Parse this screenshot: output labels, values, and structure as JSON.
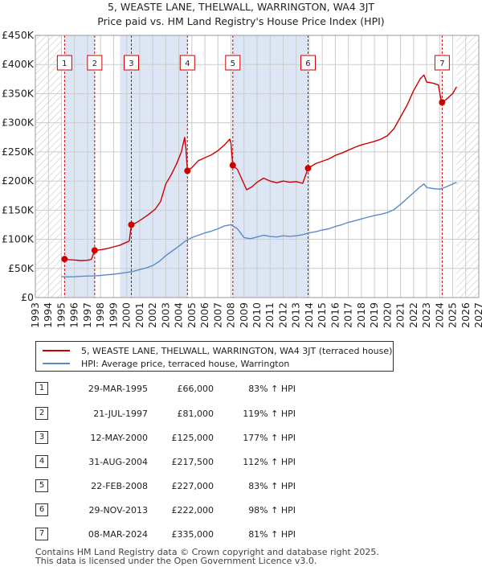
{
  "chart_data": {
    "type": "line",
    "title": "5, WEASTE LANE, THELWALL, WARRINGTON, WA4 3JT",
    "subtitle": "Price paid vs. HM Land Registry's House Price Index (HPI)",
    "xlim": [
      1993,
      2027
    ],
    "ylim": [
      0,
      450000
    ],
    "x_ticks": [
      1993,
      1994,
      1995,
      1996,
      1997,
      1998,
      1999,
      2000,
      2001,
      2002,
      2003,
      2004,
      2005,
      2006,
      2007,
      2008,
      2009,
      2010,
      2011,
      2012,
      2013,
      2014,
      2015,
      2016,
      2017,
      2018,
      2019,
      2020,
      2021,
      2022,
      2023,
      2024,
      2025,
      2026,
      2027
    ],
    "y_ticks": [
      {
        "value": 0,
        "label": "£0"
      },
      {
        "value": 50000,
        "label": "£50K"
      },
      {
        "value": 100000,
        "label": "£100K"
      },
      {
        "value": 150000,
        "label": "£150K"
      },
      {
        "value": 200000,
        "label": "£200K"
      },
      {
        "value": 250000,
        "label": "£250K"
      },
      {
        "value": 300000,
        "label": "£300K"
      },
      {
        "value": 350000,
        "label": "£350K"
      },
      {
        "value": 400000,
        "label": "£400K"
      },
      {
        "value": 450000,
        "label": "£450K"
      }
    ],
    "grid": true,
    "hatched_regions": [
      [
        1993,
        1995.0
      ],
      [
        2025.3,
        2027
      ]
    ],
    "shaded_bands": [
      [
        1995.24,
        1997.55
      ],
      [
        1999.5,
        2004.66
      ],
      [
        2008.14,
        2013.91
      ]
    ],
    "series": [
      {
        "name": "5, WEASTE LANE, THELWALL, WARRINGTON, WA4 3JT (terraced house)",
        "color": "#cc0000",
        "points": [
          [
            1995.24,
            66000
          ],
          [
            1995.6,
            65000
          ],
          [
            1996.0,
            64500
          ],
          [
            1996.5,
            63500
          ],
          [
            1997.0,
            64000
          ],
          [
            1997.3,
            65500
          ],
          [
            1997.55,
            81000
          ],
          [
            1998.0,
            82000
          ],
          [
            1998.5,
            84000
          ],
          [
            1999.0,
            87000
          ],
          [
            1999.5,
            90000
          ],
          [
            2000.0,
            95000
          ],
          [
            2000.2,
            97000
          ],
          [
            2000.36,
            125000
          ],
          [
            2000.7,
            128000
          ],
          [
            2001.2,
            135000
          ],
          [
            2001.7,
            143000
          ],
          [
            2002.2,
            152000
          ],
          [
            2002.6,
            165000
          ],
          [
            2003.0,
            195000
          ],
          [
            2003.4,
            210000
          ],
          [
            2003.8,
            228000
          ],
          [
            2004.2,
            250000
          ],
          [
            2004.45,
            275000
          ],
          [
            2004.55,
            255000
          ],
          [
            2004.66,
            217500
          ],
          [
            2005.0,
            223000
          ],
          [
            2005.5,
            235000
          ],
          [
            2006.0,
            240000
          ],
          [
            2006.5,
            245000
          ],
          [
            2007.0,
            252000
          ],
          [
            2007.5,
            262000
          ],
          [
            2007.9,
            272000
          ],
          [
            2008.0,
            265000
          ],
          [
            2008.14,
            227000
          ],
          [
            2008.5,
            220000
          ],
          [
            2008.9,
            200000
          ],
          [
            2009.2,
            185000
          ],
          [
            2009.6,
            190000
          ],
          [
            2010.0,
            198000
          ],
          [
            2010.5,
            205000
          ],
          [
            2011.0,
            200000
          ],
          [
            2011.5,
            197000
          ],
          [
            2012.0,
            200000
          ],
          [
            2012.5,
            198000
          ],
          [
            2013.0,
            199000
          ],
          [
            2013.5,
            196000
          ],
          [
            2013.91,
            222000
          ],
          [
            2014.5,
            230000
          ],
          [
            2015.0,
            234000
          ],
          [
            2015.5,
            238000
          ],
          [
            2016.0,
            244000
          ],
          [
            2016.5,
            248000
          ],
          [
            2017.0,
            253000
          ],
          [
            2017.5,
            258000
          ],
          [
            2018.0,
            262000
          ],
          [
            2018.5,
            265000
          ],
          [
            2019.0,
            268000
          ],
          [
            2019.5,
            272000
          ],
          [
            2020.0,
            278000
          ],
          [
            2020.5,
            290000
          ],
          [
            2021.0,
            310000
          ],
          [
            2021.5,
            330000
          ],
          [
            2022.0,
            355000
          ],
          [
            2022.5,
            375000
          ],
          [
            2022.8,
            382000
          ],
          [
            2023.0,
            370000
          ],
          [
            2023.5,
            368000
          ],
          [
            2023.9,
            365000
          ],
          [
            2024.1,
            340000
          ],
          [
            2024.19,
            335000
          ],
          [
            2024.5,
            340000
          ],
          [
            2025.0,
            350000
          ],
          [
            2025.3,
            362000
          ]
        ]
      },
      {
        "name": "HPI: Average price, terraced house, Warrington",
        "color": "#5b8bc6",
        "points": [
          [
            1995.0,
            36000
          ],
          [
            1995.5,
            35500
          ],
          [
            1996.0,
            35800
          ],
          [
            1996.5,
            36500
          ],
          [
            1997.0,
            37000
          ],
          [
            1997.5,
            37200
          ],
          [
            1998.0,
            38000
          ],
          [
            1998.5,
            39000
          ],
          [
            1999.0,
            40000
          ],
          [
            1999.5,
            41500
          ],
          [
            2000.0,
            43000
          ],
          [
            2000.5,
            45000
          ],
          [
            2001.0,
            48000
          ],
          [
            2001.5,
            51000
          ],
          [
            2002.0,
            55000
          ],
          [
            2002.5,
            62000
          ],
          [
            2003.0,
            72000
          ],
          [
            2003.5,
            80000
          ],
          [
            2004.0,
            88000
          ],
          [
            2004.5,
            97000
          ],
          [
            2005.0,
            103000
          ],
          [
            2005.5,
            107000
          ],
          [
            2006.0,
            111000
          ],
          [
            2006.5,
            114000
          ],
          [
            2007.0,
            118000
          ],
          [
            2007.5,
            123000
          ],
          [
            2008.0,
            125000
          ],
          [
            2008.5,
            118000
          ],
          [
            2009.0,
            103000
          ],
          [
            2009.5,
            101000
          ],
          [
            2010.0,
            104000
          ],
          [
            2010.5,
            107000
          ],
          [
            2011.0,
            105000
          ],
          [
            2011.5,
            104000
          ],
          [
            2012.0,
            106000
          ],
          [
            2012.5,
            105000
          ],
          [
            2013.0,
            106000
          ],
          [
            2013.5,
            108000
          ],
          [
            2014.0,
            111000
          ],
          [
            2014.5,
            113000
          ],
          [
            2015.0,
            116000
          ],
          [
            2015.5,
            118000
          ],
          [
            2016.0,
            122000
          ],
          [
            2016.5,
            125000
          ],
          [
            2017.0,
            129000
          ],
          [
            2017.5,
            132000
          ],
          [
            2018.0,
            135000
          ],
          [
            2018.5,
            138000
          ],
          [
            2019.0,
            141000
          ],
          [
            2019.5,
            143000
          ],
          [
            2020.0,
            146000
          ],
          [
            2020.5,
            151000
          ],
          [
            2021.0,
            160000
          ],
          [
            2021.5,
            170000
          ],
          [
            2022.0,
            180000
          ],
          [
            2022.5,
            190000
          ],
          [
            2022.8,
            195000
          ],
          [
            2023.0,
            189000
          ],
          [
            2023.5,
            187000
          ],
          [
            2024.0,
            186000
          ],
          [
            2024.5,
            190000
          ],
          [
            2025.0,
            195000
          ],
          [
            2025.3,
            198000
          ]
        ]
      }
    ],
    "markers": [
      {
        "id": "1",
        "x": 1995.24,
        "price": 66000
      },
      {
        "id": "2",
        "x": 1997.55,
        "price": 81000
      },
      {
        "id": "3",
        "x": 2000.36,
        "price": 125000
      },
      {
        "id": "4",
        "x": 2004.66,
        "price": 217500
      },
      {
        "id": "5",
        "x": 2008.14,
        "price": 227000
      },
      {
        "id": "6",
        "x": 2013.91,
        "price": 222000
      },
      {
        "id": "7",
        "x": 2024.19,
        "price": 335000
      }
    ]
  },
  "legend": {
    "property_label": "5, WEASTE LANE, THELWALL, WARRINGTON, WA4 3JT (terraced house)",
    "hpi_label": "HPI: Average price, terraced house, Warrington"
  },
  "sales": [
    {
      "num": "1",
      "date": "29-MAR-1995",
      "price": "£66,000",
      "hpi": "83% ↑ HPI"
    },
    {
      "num": "2",
      "date": "21-JUL-1997",
      "price": "£81,000",
      "hpi": "119% ↑ HPI"
    },
    {
      "num": "3",
      "date": "12-MAY-2000",
      "price": "£125,000",
      "hpi": "177% ↑ HPI"
    },
    {
      "num": "4",
      "date": "31-AUG-2004",
      "price": "£217,500",
      "hpi": "112% ↑ HPI"
    },
    {
      "num": "5",
      "date": "22-FEB-2008",
      "price": "£227,000",
      "hpi": "83% ↑ HPI"
    },
    {
      "num": "6",
      "date": "29-NOV-2013",
      "price": "£222,000",
      "hpi": "98% ↑ HPI"
    },
    {
      "num": "7",
      "date": "08-MAR-2024",
      "price": "£335,000",
      "hpi": "81% ↑ HPI"
    }
  ],
  "footer": {
    "line1": "Contains HM Land Registry data © Crown copyright and database right 2025.",
    "line2": "This data is licensed under the Open Government Licence v3.0."
  },
  "colors": {
    "property": "#cc0000",
    "hpi": "#5b8bc6",
    "band": "#dde6f5",
    "grid": "#cccccc"
  }
}
